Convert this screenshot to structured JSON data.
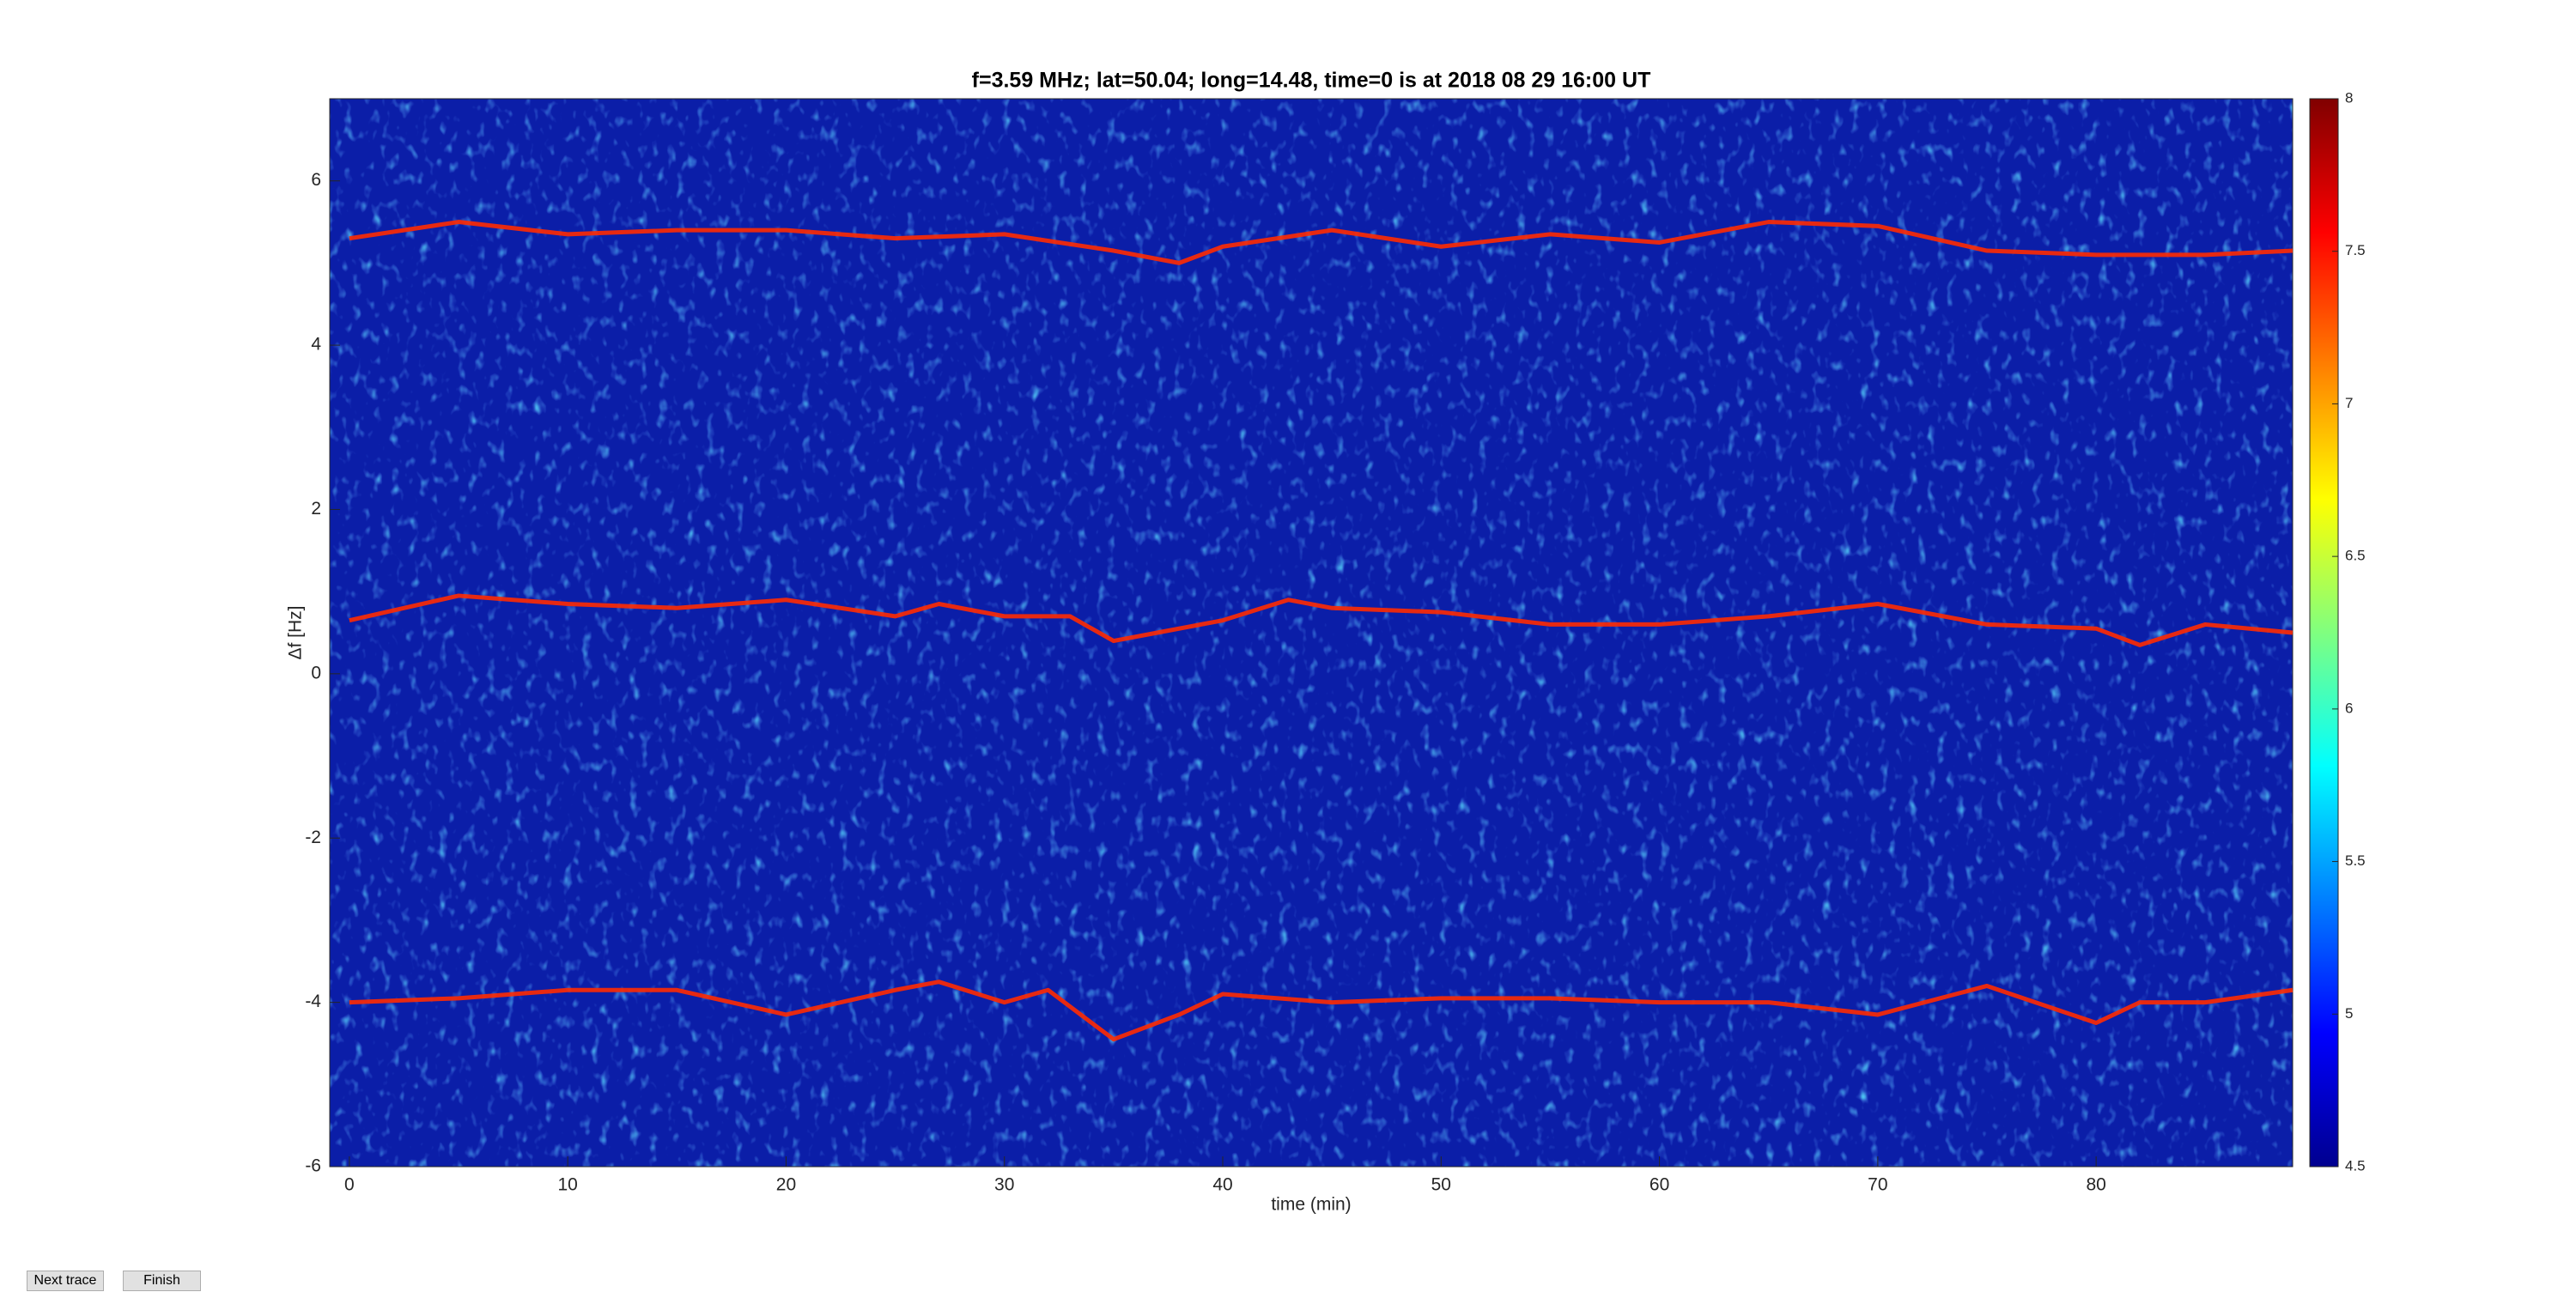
{
  "chart_data": {
    "type": "line",
    "title": "f=3.59 MHz;  lat=50.04; long=14.48, time=0 is at 2018 08 29 16:00 UT",
    "x_label": "time (min)",
    "y_label": "Δf [Hz]",
    "xlim": [
      -0.9,
      89
    ],
    "xticks": [
      0,
      10,
      20,
      30,
      40,
      50,
      60,
      70,
      80
    ],
    "ylim": [
      -6,
      7
    ],
    "yticks": [
      -6,
      -4,
      -2,
      0,
      2,
      4,
      6
    ],
    "clim": [
      4.5,
      8
    ],
    "cticks": [
      4.5,
      5,
      5.5,
      6,
      6.5,
      7,
      7.5,
      8
    ],
    "series": [
      {
        "color": "#ff2a00",
        "x": [
          0,
          5,
          10,
          15,
          20,
          25,
          30,
          35,
          38,
          40,
          45,
          50,
          55,
          60,
          65,
          70,
          75,
          80,
          85,
          89
        ],
        "values": [
          5.3,
          5.5,
          5.35,
          5.4,
          5.4,
          5.3,
          5.35,
          5.15,
          5.0,
          5.2,
          5.4,
          5.2,
          5.35,
          5.25,
          5.5,
          5.45,
          5.15,
          5.1,
          5.1,
          5.15
        ]
      },
      {
        "color": "#ff2a00",
        "x": [
          0,
          5,
          10,
          15,
          20,
          25,
          27,
          30,
          33,
          35,
          37,
          40,
          43,
          45,
          50,
          55,
          60,
          65,
          70,
          75,
          80,
          82,
          85,
          89
        ],
        "values": [
          0.65,
          0.95,
          0.85,
          0.8,
          0.9,
          0.7,
          0.85,
          0.7,
          0.7,
          0.4,
          0.5,
          0.65,
          0.9,
          0.8,
          0.75,
          0.6,
          0.6,
          0.7,
          0.85,
          0.6,
          0.55,
          0.35,
          0.6,
          0.5
        ]
      },
      {
        "color": "#ff2a00",
        "x": [
          0,
          5,
          10,
          15,
          20,
          25,
          27,
          30,
          32,
          35,
          38,
          40,
          45,
          50,
          55,
          60,
          65,
          70,
          75,
          80,
          82,
          85,
          89
        ],
        "values": [
          -4,
          -3.95,
          -3.85,
          -3.85,
          -4.15,
          -3.85,
          -3.75,
          -4.0,
          -3.85,
          -4.45,
          -4.15,
          -3.9,
          -4.0,
          -3.95,
          -3.95,
          -4.0,
          -4.0,
          -4.15,
          -3.8,
          -4.25,
          -4.0,
          -4.0,
          -3.85
        ]
      }
    ]
  },
  "buttons": [
    "Next trace",
    "Finish"
  ]
}
